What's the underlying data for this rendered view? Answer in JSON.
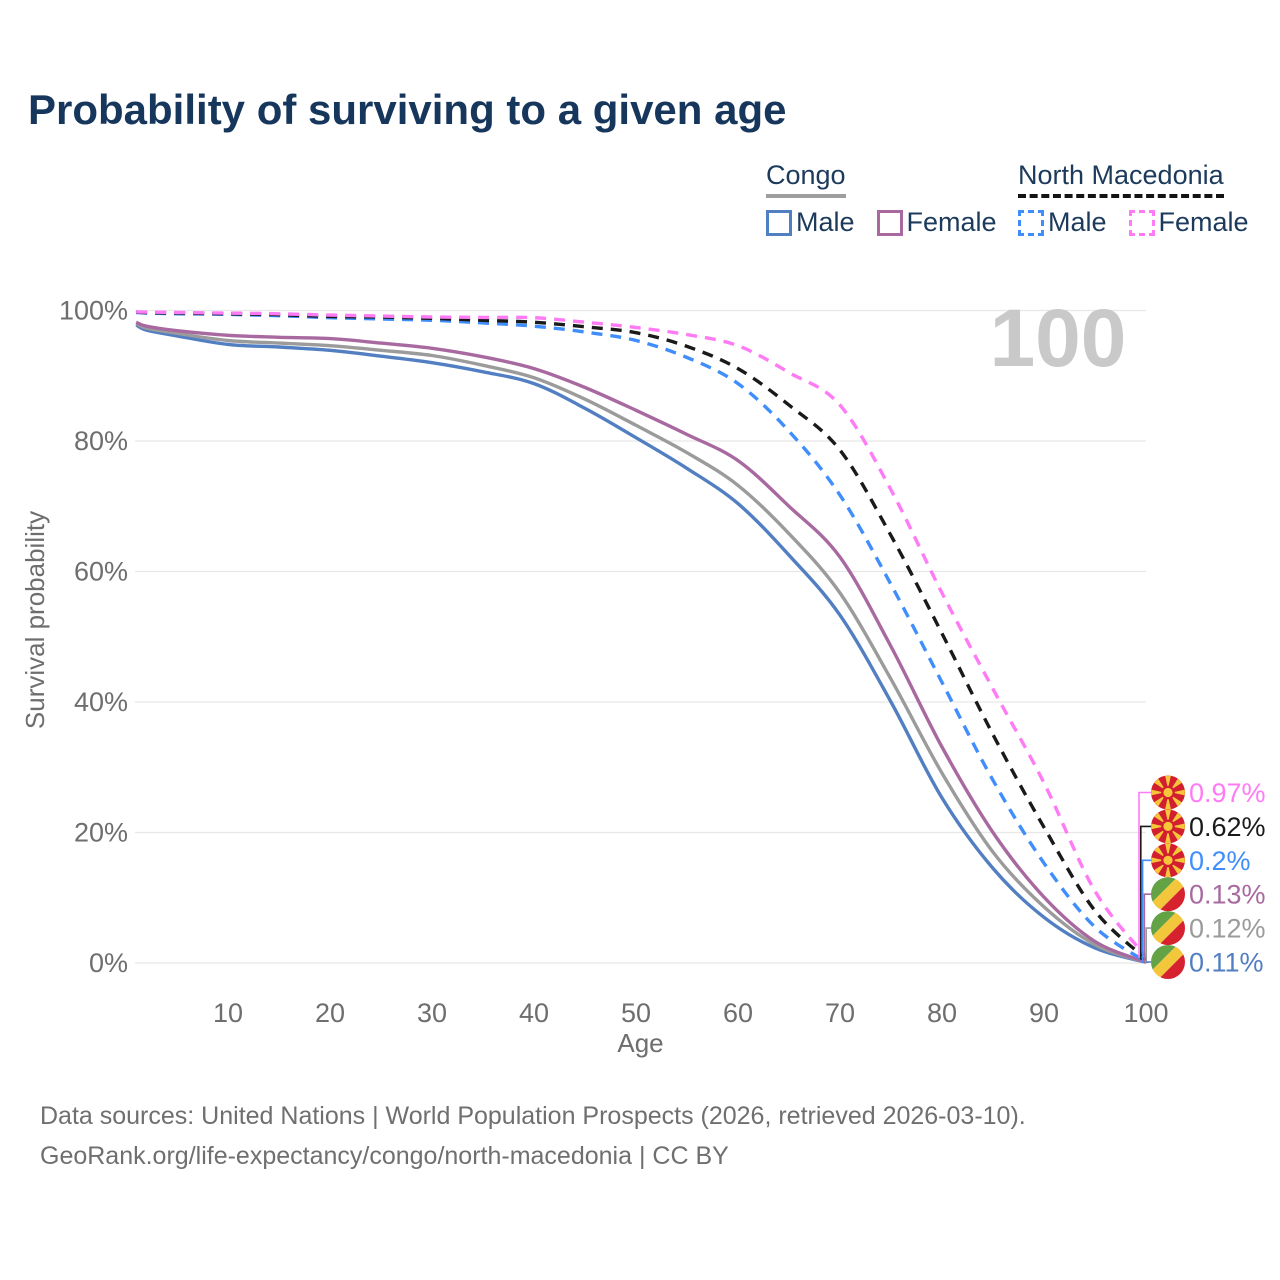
{
  "title": "Probability of surviving to a given age",
  "watermark": "100",
  "legend": {
    "groups": [
      {
        "name": "Congo",
        "line_style": "solid",
        "underline_color": "#9e9e9e",
        "items": [
          {
            "label": "Male",
            "color": "#527ec2",
            "dashed": false
          },
          {
            "label": "Female",
            "color": "#a869a0",
            "dashed": false
          }
        ]
      },
      {
        "name": "North Macedonia",
        "line_style": "dashed",
        "underline_color": "#141414",
        "items": [
          {
            "label": "Male",
            "color": "#3f8efc",
            "dashed": true
          },
          {
            "label": "Female",
            "color": "#ff7bf5",
            "dashed": true
          }
        ]
      }
    ]
  },
  "chart_data": {
    "type": "line",
    "xlabel": "Age",
    "ylabel": "Survival probability",
    "xlim": [
      0,
      100
    ],
    "ylim": [
      0,
      100
    ],
    "grid": "horizontal",
    "x_ticks": [
      10,
      20,
      30,
      40,
      50,
      60,
      70,
      80,
      90,
      100
    ],
    "y_ticks": [
      {
        "label": "100%",
        "value": 100
      },
      {
        "label": "80%",
        "value": 80
      },
      {
        "label": "60%",
        "value": 60
      },
      {
        "label": "40%",
        "value": 40
      },
      {
        "label": "20%",
        "value": 20
      },
      {
        "label": "0%",
        "value": 0
      }
    ],
    "ages": [
      1,
      2,
      5,
      10,
      15,
      20,
      25,
      30,
      35,
      40,
      45,
      50,
      55,
      60,
      65,
      70,
      75,
      80,
      85,
      90,
      95,
      100
    ],
    "series": [
      {
        "name": "Congo Male",
        "country": "Congo",
        "sex": "Male",
        "color": "#527ec2",
        "dash": "solid",
        "values": [
          97.8,
          97.0,
          96.1,
          94.8,
          94.4,
          93.9,
          93.0,
          92.0,
          90.6,
          88.8,
          85.0,
          80.5,
          75.8,
          70.4,
          62.5,
          53.3,
          40.0,
          25.3,
          14.5,
          7.0,
          2.3,
          0.11
        ]
      },
      {
        "name": "Congo Both sexes",
        "country": "Congo",
        "sex": "Both",
        "color": "#9b9b9b",
        "dash": "solid",
        "values": [
          98.0,
          97.3,
          96.5,
          95.4,
          95.0,
          94.6,
          93.9,
          93.1,
          91.6,
          89.7,
          86.4,
          82.4,
          78.2,
          73.2,
          65.8,
          56.7,
          43.5,
          29.1,
          17.0,
          8.6,
          2.8,
          0.12
        ]
      },
      {
        "name": "Congo Female",
        "country": "Congo",
        "sex": "Female",
        "color": "#a869a0",
        "dash": "solid",
        "values": [
          98.2,
          97.6,
          96.9,
          96.2,
          95.9,
          95.7,
          95.0,
          94.2,
          92.9,
          91.1,
          88.2,
          84.7,
          81.0,
          77.0,
          70.0,
          62.2,
          48.5,
          33.1,
          20.0,
          10.1,
          3.3,
          0.13
        ]
      },
      {
        "name": "North Macedonia Male",
        "country": "North Macedonia",
        "sex": "Male",
        "color": "#3f8efc",
        "dash": "dashed",
        "values": [
          99.7,
          99.6,
          99.5,
          99.4,
          99.2,
          98.9,
          98.7,
          98.5,
          98.1,
          97.6,
          96.7,
          95.4,
          92.8,
          88.8,
          81.5,
          71.7,
          58.0,
          43.0,
          28.0,
          15.3,
          5.5,
          0.2
        ]
      },
      {
        "name": "North Macedonia Both sexes",
        "country": "North Macedonia",
        "sex": "Both",
        "color": "#1a1a1a",
        "dash": "dashed",
        "values": [
          99.75,
          99.7,
          99.6,
          99.5,
          99.35,
          99.1,
          99.0,
          98.8,
          98.5,
          98.2,
          97.5,
          96.6,
          94.5,
          91.1,
          85.5,
          78.6,
          65.5,
          50.5,
          35.0,
          20.8,
          8.0,
          0.62
        ]
      },
      {
        "name": "North Macedonia Female",
        "country": "North Macedonia",
        "sex": "Female",
        "color": "#ff7bf5",
        "dash": "dashed",
        "values": [
          99.8,
          99.75,
          99.7,
          99.6,
          99.5,
          99.3,
          99.15,
          99.0,
          98.95,
          98.9,
          98.2,
          97.4,
          96.3,
          94.6,
          90.5,
          85.5,
          72.5,
          56.7,
          42.0,
          27.6,
          11.0,
          0.97
        ]
      }
    ]
  },
  "end_labels": [
    {
      "value": "0.97%",
      "series": "North Macedonia Female",
      "flag": "north-macedonia",
      "color": "#ff7bf5"
    },
    {
      "value": "0.62%",
      "series": "North Macedonia Both sexes",
      "flag": "north-macedonia",
      "color": "#1a1a1a"
    },
    {
      "value": "0.2%",
      "series": "North Macedonia Male",
      "flag": "north-macedonia",
      "color": "#3f8efc"
    },
    {
      "value": "0.13%",
      "series": "Congo Female",
      "flag": "congo",
      "color": "#a869a0"
    },
    {
      "value": "0.12%",
      "series": "Congo Both sexes",
      "flag": "congo",
      "color": "#9b9b9b"
    },
    {
      "value": "0.11%",
      "series": "Congo Male",
      "flag": "congo",
      "color": "#527ec2"
    }
  ],
  "flag_colors": {
    "north_macedonia": {
      "red": "#d21f2f",
      "yellow": "#f6c53a"
    },
    "congo": {
      "green": "#64a246",
      "yellow": "#f3c73c",
      "red": "#d6212f"
    }
  },
  "footer": {
    "line1": "Data sources: United Nations | World Population Prospects (2026, retrieved 2026-03-10).",
    "line2": "GeoRank.org/life-expectancy/congo/north-macedonia | CC BY"
  }
}
